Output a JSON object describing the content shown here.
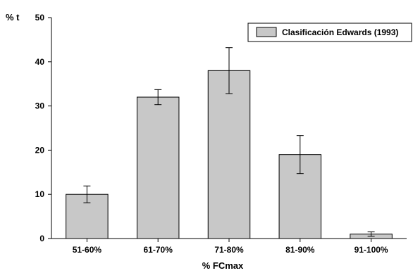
{
  "chart_data": {
    "type": "bar",
    "categories": [
      "51-60%",
      "61-70%",
      "71-80%",
      "81-90%",
      "91-100%"
    ],
    "series": [
      {
        "name": "Clasificación Edwards (1993)",
        "values": [
          10,
          32,
          38,
          19,
          1
        ],
        "error": [
          1.9,
          1.7,
          5.2,
          4.3,
          0.5
        ]
      }
    ],
    "title": "",
    "xlabel": "% FCmax",
    "ylabel": "% t",
    "ylim": [
      0,
      50
    ],
    "yticks": [
      0,
      10,
      20,
      30,
      40,
      50
    ],
    "grid": false,
    "legend_position": "top-right",
    "colors": {
      "bar_fill": "#c8c8c8",
      "bar_stroke": "#000000",
      "axis": "#000000"
    }
  }
}
